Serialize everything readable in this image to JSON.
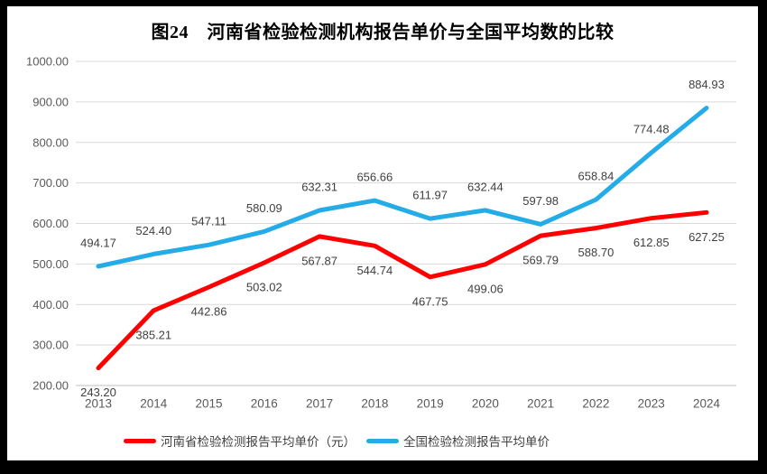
{
  "frame": {
    "border_color": "#000000",
    "background": "#ffffff"
  },
  "chart_data": {
    "type": "line",
    "title": "图24　河南省检验检测机构报告单价与全国平均数的比较",
    "categories": [
      "2013",
      "2014",
      "2015",
      "2016",
      "2017",
      "2018",
      "2019",
      "2020",
      "2021",
      "2022",
      "2023",
      "2024"
    ],
    "series": [
      {
        "name": "河南省检验检测报告平均单价（元）",
        "color": "#FE0000",
        "values": [
          243.2,
          385.21,
          442.86,
          503.02,
          567.87,
          544.74,
          467.75,
          499.06,
          569.79,
          588.7,
          612.85,
          627.25
        ],
        "labels": [
          "243.20",
          "385.21",
          "442.86",
          "503.02",
          "567.87",
          "544.74",
          "467.75",
          "499.06",
          "569.79",
          "588.70",
          "612.85",
          "627.25"
        ],
        "label_position": "below"
      },
      {
        "name": "全国检验检测报告平均单价",
        "color": "#23ACE8",
        "values": [
          494.17,
          524.4,
          547.11,
          580.09,
          632.31,
          656.66,
          611.97,
          632.44,
          597.98,
          658.84,
          774.48,
          884.93
        ],
        "labels": [
          "494.17",
          "524.40",
          "547.11",
          "580.09",
          "632.31",
          "656.66",
          "611.97",
          "632.44",
          "597.98",
          "658.84",
          "774.48",
          "884.93"
        ],
        "label_position": "above"
      }
    ],
    "y_axis": {
      "min": 200,
      "max": 1000,
      "step": 100,
      "tick_labels": [
        "1000.00",
        "900.00",
        "800.00",
        "700.00",
        "600.00",
        "500.00",
        "400.00",
        "300.00",
        "200.00"
      ]
    },
    "x_axis": {
      "tick_labels": [
        "2013",
        "2014",
        "2015",
        "2016",
        "2017",
        "2018",
        "2019",
        "2020",
        "2021",
        "2022",
        "2023",
        "2024"
      ]
    },
    "grid": true,
    "legend_position": "bottom",
    "colors": {
      "gridline": "#D9D9D9",
      "axis_line": "#BFBFBF",
      "tick_text": "#595959",
      "data_label_text": "#404040",
      "title_text": "#000000"
    }
  }
}
